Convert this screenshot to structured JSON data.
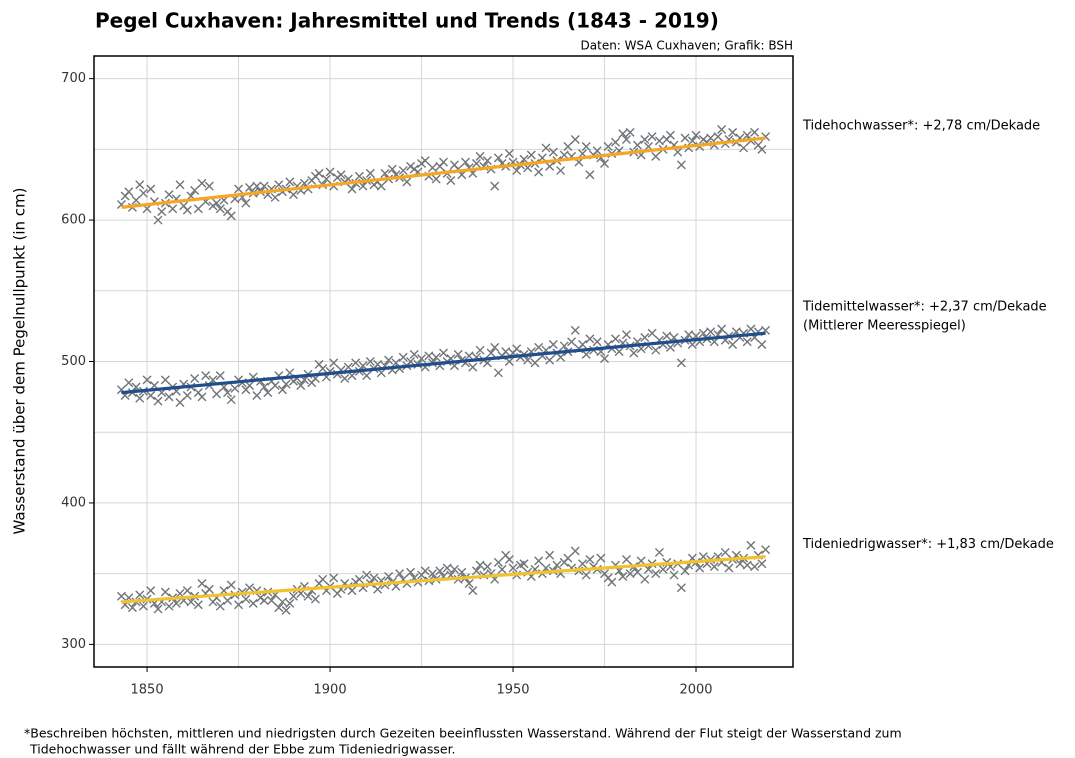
{
  "chart_data": {
    "type": "scatter",
    "title": "Pegel Cuxhaven: Jahresmittel und Trends (1843 - 2019)",
    "subtitle": "Daten: WSA Cuxhaven; Grafik: BSH",
    "y_label": "Wasserstand über dem Pegelnullpunkt (in cm)",
    "footnote": [
      "*Beschreiben höchsten, mittleren und niedrigsten durch Gezeiten beeinflussten Wasserstand. Während der Flut steigt der Wasserstand zum",
      "Tidehochwasser und fällt während der Ebbe zum Tideniedrigwasser."
    ],
    "xlim": [
      1835.5,
      2026.5
    ],
    "ylim": [
      284,
      716
    ],
    "xticks": [
      1850,
      1900,
      1950,
      2000
    ],
    "yticks": [
      300,
      400,
      500,
      600,
      700
    ],
    "xgrid": [
      1850,
      1875,
      1900,
      1925,
      1950,
      1975,
      2000
    ],
    "ygrid": [
      300,
      350,
      400,
      450,
      500,
      550,
      600,
      650,
      700
    ],
    "marker_color": "#6f7478",
    "trend_x": [
      1843,
      2019
    ],
    "x": [
      1843,
      1844,
      1845,
      1846,
      1847,
      1848,
      1849,
      1850,
      1851,
      1852,
      1853,
      1854,
      1855,
      1856,
      1857,
      1858,
      1859,
      1860,
      1861,
      1862,
      1863,
      1864,
      1865,
      1866,
      1867,
      1868,
      1869,
      1870,
      1871,
      1872,
      1873,
      1874,
      1875,
      1876,
      1877,
      1878,
      1879,
      1880,
      1881,
      1882,
      1883,
      1884,
      1885,
      1886,
      1887,
      1888,
      1889,
      1890,
      1891,
      1892,
      1893,
      1894,
      1895,
      1896,
      1897,
      1898,
      1899,
      1900,
      1901,
      1902,
      1903,
      1904,
      1905,
      1906,
      1907,
      1908,
      1909,
      1910,
      1911,
      1912,
      1913,
      1914,
      1915,
      1916,
      1917,
      1918,
      1919,
      1920,
      1921,
      1922,
      1923,
      1924,
      1925,
      1926,
      1927,
      1928,
      1929,
      1930,
      1931,
      1932,
      1933,
      1934,
      1935,
      1936,
      1937,
      1938,
      1939,
      1940,
      1941,
      1942,
      1943,
      1944,
      1945,
      1946,
      1947,
      1948,
      1949,
      1950,
      1951,
      1952,
      1953,
      1954,
      1955,
      1956,
      1957,
      1958,
      1959,
      1960,
      1961,
      1962,
      1963,
      1964,
      1965,
      1966,
      1967,
      1968,
      1969,
      1970,
      1971,
      1972,
      1973,
      1974,
      1975,
      1976,
      1977,
      1978,
      1979,
      1980,
      1981,
      1982,
      1983,
      1984,
      1985,
      1986,
      1987,
      1988,
      1989,
      1990,
      1991,
      1992,
      1993,
      1994,
      1995,
      1996,
      1997,
      1998,
      1999,
      2000,
      2001,
      2002,
      2003,
      2004,
      2005,
      2006,
      2007,
      2008,
      2009,
      2010,
      2011,
      2012,
      2013,
      2014,
      2015,
      2016,
      2017,
      2018,
      2019
    ],
    "series": [
      {
        "name": "Tidehochwasser*: +2,78 cm/Dekade",
        "color": "#f5a623",
        "trend_values": [
          609,
          658
        ],
        "values": [
          611,
          617,
          620,
          609,
          614,
          625,
          619,
          608,
          622,
          613,
          600,
          606,
          612,
          618,
          608,
          615,
          625,
          610,
          607,
          617,
          621,
          608,
          626,
          613,
          624,
          610,
          612,
          608,
          614,
          606,
          603,
          615,
          622,
          616,
          612,
          623,
          619,
          624,
          620,
          624,
          618,
          622,
          616,
          625,
          620,
          622,
          627,
          618,
          624,
          621,
          626,
          622,
          628,
          631,
          633,
          625,
          629,
          634,
          624,
          630,
          632,
          627,
          629,
          622,
          626,
          631,
          624,
          628,
          633,
          625,
          627,
          624,
          633,
          629,
          636,
          632,
          630,
          635,
          627,
          638,
          636,
          634,
          640,
          642,
          631,
          637,
          629,
          638,
          641,
          633,
          628,
          639,
          636,
          632,
          641,
          637,
          633,
          640,
          645,
          638,
          642,
          636,
          624,
          644,
          640,
          638,
          647,
          641,
          635,
          639,
          643,
          637,
          646,
          640,
          634,
          644,
          651,
          638,
          648,
          642,
          635,
          646,
          652,
          645,
          657,
          641,
          647,
          652,
          632,
          646,
          649,
          644,
          640,
          652,
          647,
          655,
          649,
          661,
          657,
          662,
          648,
          653,
          646,
          657,
          652,
          659,
          645,
          656,
          650,
          657,
          660,
          653,
          648,
          639,
          658,
          651,
          656,
          660,
          652,
          657,
          655,
          658,
          653,
          659,
          664,
          654,
          657,
          662,
          655,
          658,
          651,
          660,
          656,
          662,
          653,
          650,
          659
        ]
      },
      {
        "name": "Tidemittelwasser*: +2,37 cm/Dekade",
        "note": "(Mittlerer Meeresspiegel)",
        "color": "#1f4e8c",
        "trend_values": [
          478,
          520
        ],
        "values": [
          480,
          476,
          485,
          478,
          482,
          474,
          479,
          487,
          476,
          483,
          472,
          478,
          487,
          475,
          482,
          479,
          471,
          484,
          476,
          482,
          488,
          478,
          475,
          490,
          483,
          487,
          477,
          490,
          482,
          478,
          473,
          481,
          487,
          485,
          480,
          483,
          489,
          476,
          486,
          482,
          478,
          486,
          483,
          490,
          480,
          484,
          492,
          486,
          488,
          483,
          487,
          491,
          485,
          488,
          498,
          495,
          489,
          493,
          499,
          491,
          494,
          488,
          496,
          490,
          499,
          493,
          497,
          490,
          500,
          495,
          498,
          492,
          497,
          501,
          494,
          499,
          495,
          503,
          497,
          500,
          505,
          498,
          502,
          496,
          504,
          499,
          503,
          497,
          506,
          500,
          502,
          497,
          505,
          501,
          499,
          504,
          496,
          503,
          508,
          501,
          499,
          506,
          510,
          492,
          504,
          507,
          500,
          506,
          509,
          503,
          505,
          501,
          507,
          499,
          510,
          504,
          508,
          501,
          512,
          506,
          503,
          511,
          507,
          514,
          522,
          509,
          512,
          505,
          516,
          508,
          514,
          507,
          502,
          512,
          509,
          516,
          507,
          513,
          519,
          511,
          506,
          514,
          509,
          517,
          511,
          520,
          508,
          515,
          512,
          518,
          510,
          517,
          513,
          499,
          515,
          519,
          512,
          518,
          514,
          520,
          516,
          521,
          514,
          519,
          523,
          515,
          518,
          512,
          521,
          517,
          520,
          514,
          523,
          517,
          521,
          512,
          522
        ]
      },
      {
        "name": "Tideniedrigwasser*: +1,83 cm/Dekade",
        "color": "#f2c12e",
        "trend_values": [
          330,
          362
        ],
        "values": [
          334,
          328,
          333,
          326,
          330,
          335,
          327,
          332,
          338,
          329,
          325,
          330,
          337,
          327,
          333,
          329,
          336,
          331,
          338,
          330,
          334,
          328,
          343,
          336,
          339,
          330,
          333,
          327,
          338,
          331,
          342,
          335,
          328,
          337,
          332,
          340,
          329,
          338,
          333,
          331,
          337,
          331,
          335,
          326,
          330,
          324,
          329,
          334,
          339,
          336,
          341,
          334,
          338,
          332,
          343,
          346,
          338,
          341,
          347,
          336,
          339,
          343,
          341,
          338,
          344,
          346,
          340,
          349,
          343,
          347,
          339,
          345,
          342,
          348,
          344,
          341,
          350,
          346,
          343,
          351,
          347,
          344,
          349,
          352,
          345,
          350,
          346,
          352,
          348,
          354,
          349,
          353,
          346,
          351,
          347,
          343,
          338,
          352,
          356,
          349,
          355,
          350,
          346,
          358,
          353,
          363,
          360,
          354,
          349,
          356,
          357,
          351,
          348,
          353,
          359,
          350,
          354,
          363,
          352,
          356,
          350,
          358,
          361,
          354,
          366,
          352,
          357,
          349,
          360,
          355,
          353,
          361,
          350,
          347,
          344,
          356,
          352,
          348,
          360,
          350,
          355,
          351,
          359,
          346,
          353,
          357,
          350,
          365,
          353,
          358,
          355,
          349,
          357,
          340,
          352,
          356,
          361,
          358,
          354,
          362,
          357,
          360,
          355,
          362,
          358,
          365,
          354,
          360,
          363,
          357,
          361,
          356,
          370,
          355,
          363,
          357,
          367
        ]
      }
    ]
  }
}
